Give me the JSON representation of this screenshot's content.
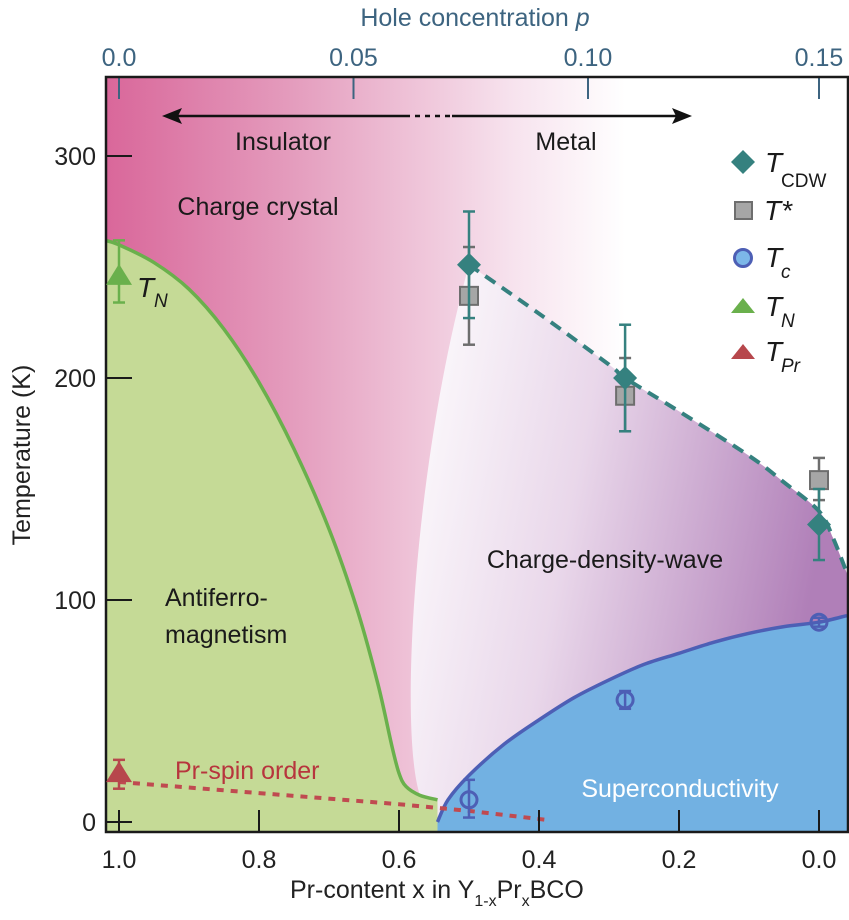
{
  "chart_data": {
    "type": "scatter",
    "title": "",
    "xlabel": "Pr-content x in Y1-xPrxBCO",
    "xlabel_parts": {
      "pre": "Pr-content x in Y",
      "sub1": "1-x",
      "mid": "Pr",
      "sub2": "x",
      "post": "BCO"
    },
    "ylabel": "Temperature (K)",
    "top_xlabel": {
      "text": "Hole concentration ",
      "italic": "p"
    },
    "xlim": [
      1.02,
      -0.04
    ],
    "ylim": [
      -4,
      339
    ],
    "x_ticks": [
      1.0,
      0.8,
      0.6,
      0.4,
      0.2,
      0.0
    ],
    "x_tick_labels": [
      "1.0",
      "0.8",
      "0.6",
      "0.4",
      "0.2",
      "0.0"
    ],
    "y_ticks": [
      0,
      100,
      200,
      300
    ],
    "y_tick_labels": [
      "0",
      "100",
      "200",
      "300"
    ],
    "top_ticks": [
      {
        "x": 1.0,
        "label": "0.0"
      },
      {
        "x": 0.665,
        "label": "0.05"
      },
      {
        "x": 0.33,
        "label": "0.10"
      },
      {
        "x": 0.0,
        "label": "0.15"
      }
    ],
    "grid": false,
    "legend_position": "top-right",
    "colors": {
      "cdw": "#35817f",
      "tstar_fill": "#a6a6a6",
      "tstar_edge": "#6e6e6e",
      "tc_fill": "#7cb7e8",
      "tc_edge": "#4d5fb5",
      "tn": "#6ab04c",
      "tpr": "#b7474c",
      "afm_region": "#c5da96",
      "sc_region": "#72b1e2",
      "charge_crystal": "#d9679a",
      "cdw_region": "#b98ac0",
      "axis": "#1a1a1a",
      "top_axis": "#3d6480"
    },
    "series": [
      {
        "name": "T_CDW",
        "label": "T",
        "sub": "CDW",
        "marker": "diamond",
        "points": [
          {
            "x": 0.5,
            "y": 251,
            "err_lo": 227,
            "err_hi": 275
          },
          {
            "x": 0.277,
            "y": 200,
            "err_lo": 176,
            "err_hi": 224
          },
          {
            "x": 0.0,
            "y": 134,
            "err_lo": 118,
            "err_hi": 150
          }
        ]
      },
      {
        "name": "T*",
        "label": "T*",
        "sub": "",
        "marker": "square",
        "points": [
          {
            "x": 0.5,
            "y": 237,
            "err_lo": 215,
            "err_hi": 259
          },
          {
            "x": 0.277,
            "y": 192,
            "err_lo": 176,
            "err_hi": 209
          },
          {
            "x": 0.0,
            "y": 154,
            "err_lo": 145,
            "err_hi": 164
          }
        ]
      },
      {
        "name": "T_c",
        "label": "T",
        "sub": "c",
        "marker": "circle",
        "points": [
          {
            "x": 0.5,
            "y": 10,
            "err_lo": 2,
            "err_hi": 19
          },
          {
            "x": 0.277,
            "y": 55,
            "err_lo": 51,
            "err_hi": 59
          },
          {
            "x": 0.0,
            "y": 90,
            "err_lo": 88,
            "err_hi": 92
          }
        ]
      },
      {
        "name": "T_N",
        "label": "T",
        "sub": "N",
        "marker": "triangle",
        "points": [
          {
            "x": 1.0,
            "y": 246,
            "err_lo": 234,
            "err_hi": 262
          }
        ]
      },
      {
        "name": "T_Pr",
        "label": "T",
        "sub": "Pr",
        "marker": "triangle",
        "points": [
          {
            "x": 1.0,
            "y": 22,
            "err_lo": 15,
            "err_hi": 28
          }
        ]
      }
    ],
    "boundaries": {
      "afm": [
        [
          1.02,
          262
        ],
        [
          1.0,
          260
        ],
        [
          0.95,
          252
        ],
        [
          0.9,
          240
        ],
        [
          0.85,
          222
        ],
        [
          0.8,
          198
        ],
        [
          0.75,
          168
        ],
        [
          0.7,
          132
        ],
        [
          0.66,
          96
        ],
        [
          0.63,
          62
        ],
        [
          0.61,
          34
        ],
        [
          0.6,
          22
        ],
        [
          0.59,
          16
        ],
        [
          0.57,
          12
        ],
        [
          0.545,
          10
        ]
      ],
      "sc_dome": [
        [
          0.545,
          0
        ],
        [
          0.53,
          10
        ],
        [
          0.5,
          21
        ],
        [
          0.45,
          35
        ],
        [
          0.4,
          46
        ],
        [
          0.35,
          56
        ],
        [
          0.3,
          64
        ],
        [
          0.25,
          71
        ],
        [
          0.2,
          76
        ],
        [
          0.15,
          81
        ],
        [
          0.1,
          85
        ],
        [
          0.05,
          88
        ],
        [
          0.0,
          90
        ],
        [
          -0.04,
          93
        ]
      ],
      "cdw_dashed": [
        [
          0.5,
          251
        ],
        [
          0.4,
          229
        ],
        [
          0.3,
          206
        ],
        [
          0.277,
          200
        ],
        [
          0.2,
          185
        ],
        [
          0.1,
          165
        ],
        [
          0.05,
          153
        ],
        [
          0.0,
          140
        ]
      ],
      "cdw_edge": [
        [
          0.0,
          140
        ],
        [
          -0.02,
          128
        ],
        [
          -0.04,
          112
        ]
      ],
      "pr_dashed": [
        [
          1.0,
          18
        ],
        [
          0.8,
          13
        ],
        [
          0.6,
          8
        ],
        [
          0.5,
          5
        ],
        [
          0.39,
          1
        ]
      ]
    },
    "annotations": {
      "insulator": "Insulator",
      "metal": "Metal",
      "charge_crystal": "Charge crystal",
      "antiferro_line1": "Antiferro-",
      "antiferro_line2": "magnetism",
      "cdw": "Charge-density-wave",
      "superconductivity": "Superconductivity",
      "pr_spin_order": "Pr-spin order",
      "tn_label": "T",
      "tn_sub": "N"
    }
  }
}
